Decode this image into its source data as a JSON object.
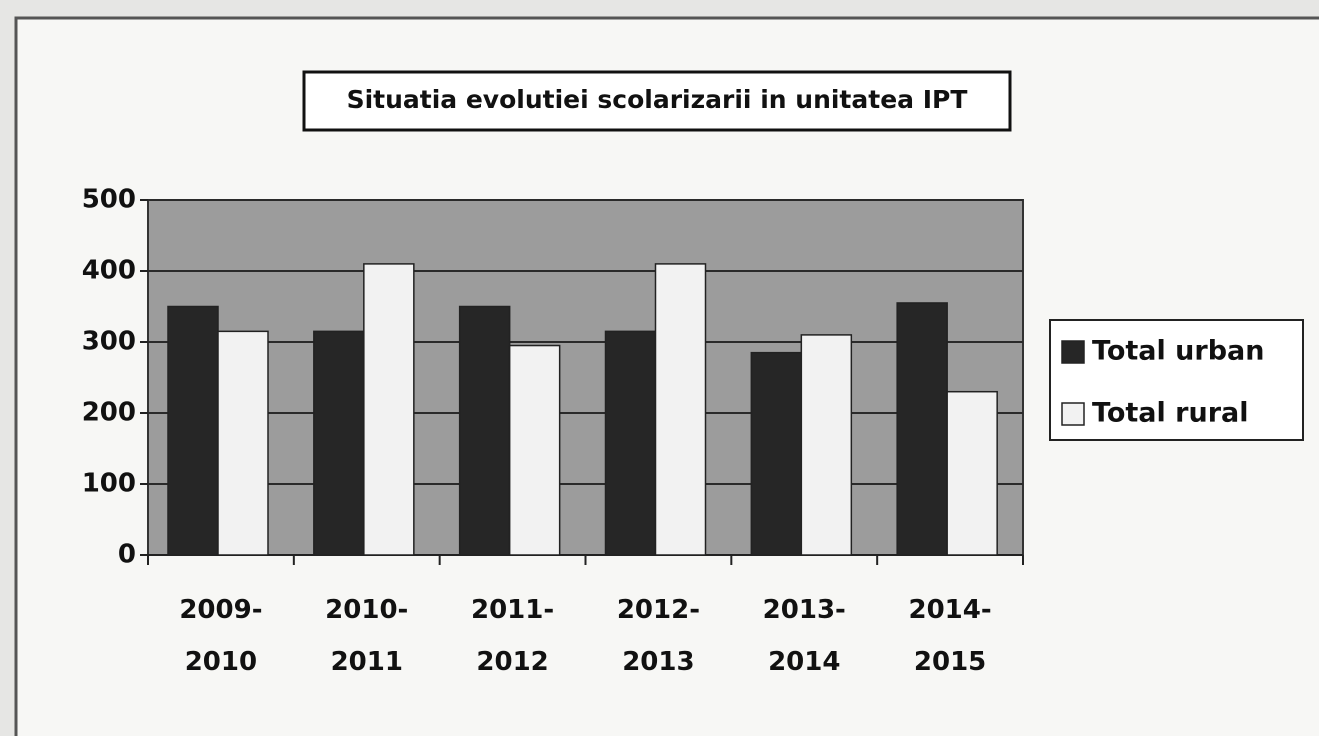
{
  "chart_data": {
    "type": "bar",
    "title": "Situatia evolutiei scolarizarii in unitatea IPT",
    "categories": [
      "2009-2010",
      "2010-2011",
      "2011-2012",
      "2012-2013",
      "2013-2014",
      "2014-2015"
    ],
    "series": [
      {
        "name": "Total urban",
        "color": "#262626",
        "values": [
          350,
          315,
          350,
          315,
          285,
          355
        ]
      },
      {
        "name": "Total rural",
        "color": "#f2f2f2",
        "values": [
          315,
          410,
          295,
          410,
          310,
          230
        ]
      }
    ],
    "ylim": [
      0,
      500
    ],
    "yticks": [
      0,
      100,
      200,
      300,
      400,
      500
    ],
    "grid": true,
    "legend": "right"
  }
}
